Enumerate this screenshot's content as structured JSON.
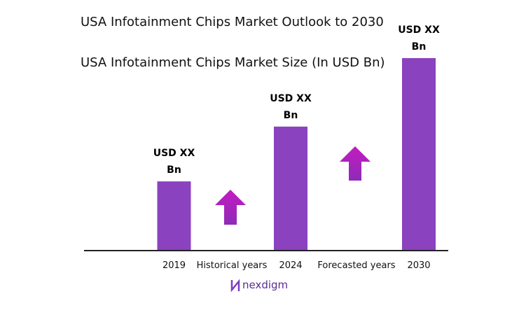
{
  "chart_data": {
    "type": "bar",
    "title": "USA Infotainment Chips Market Outlook to 2030",
    "subtitle": "USA Infotainment Chips Market Size (In USD Bn)",
    "categories": [
      "2019",
      "2024",
      "2030"
    ],
    "values": [
      1.0,
      1.8,
      2.8
    ],
    "value_labels": [
      "USD XX Bn",
      "USD XX Bn",
      "USD XX Bn"
    ],
    "color": "#8a42bf",
    "ylim": [
      0,
      2.8
    ],
    "annotations": [
      "Historical years",
      "Forecasted years"
    ]
  },
  "logo": "nexdigm"
}
